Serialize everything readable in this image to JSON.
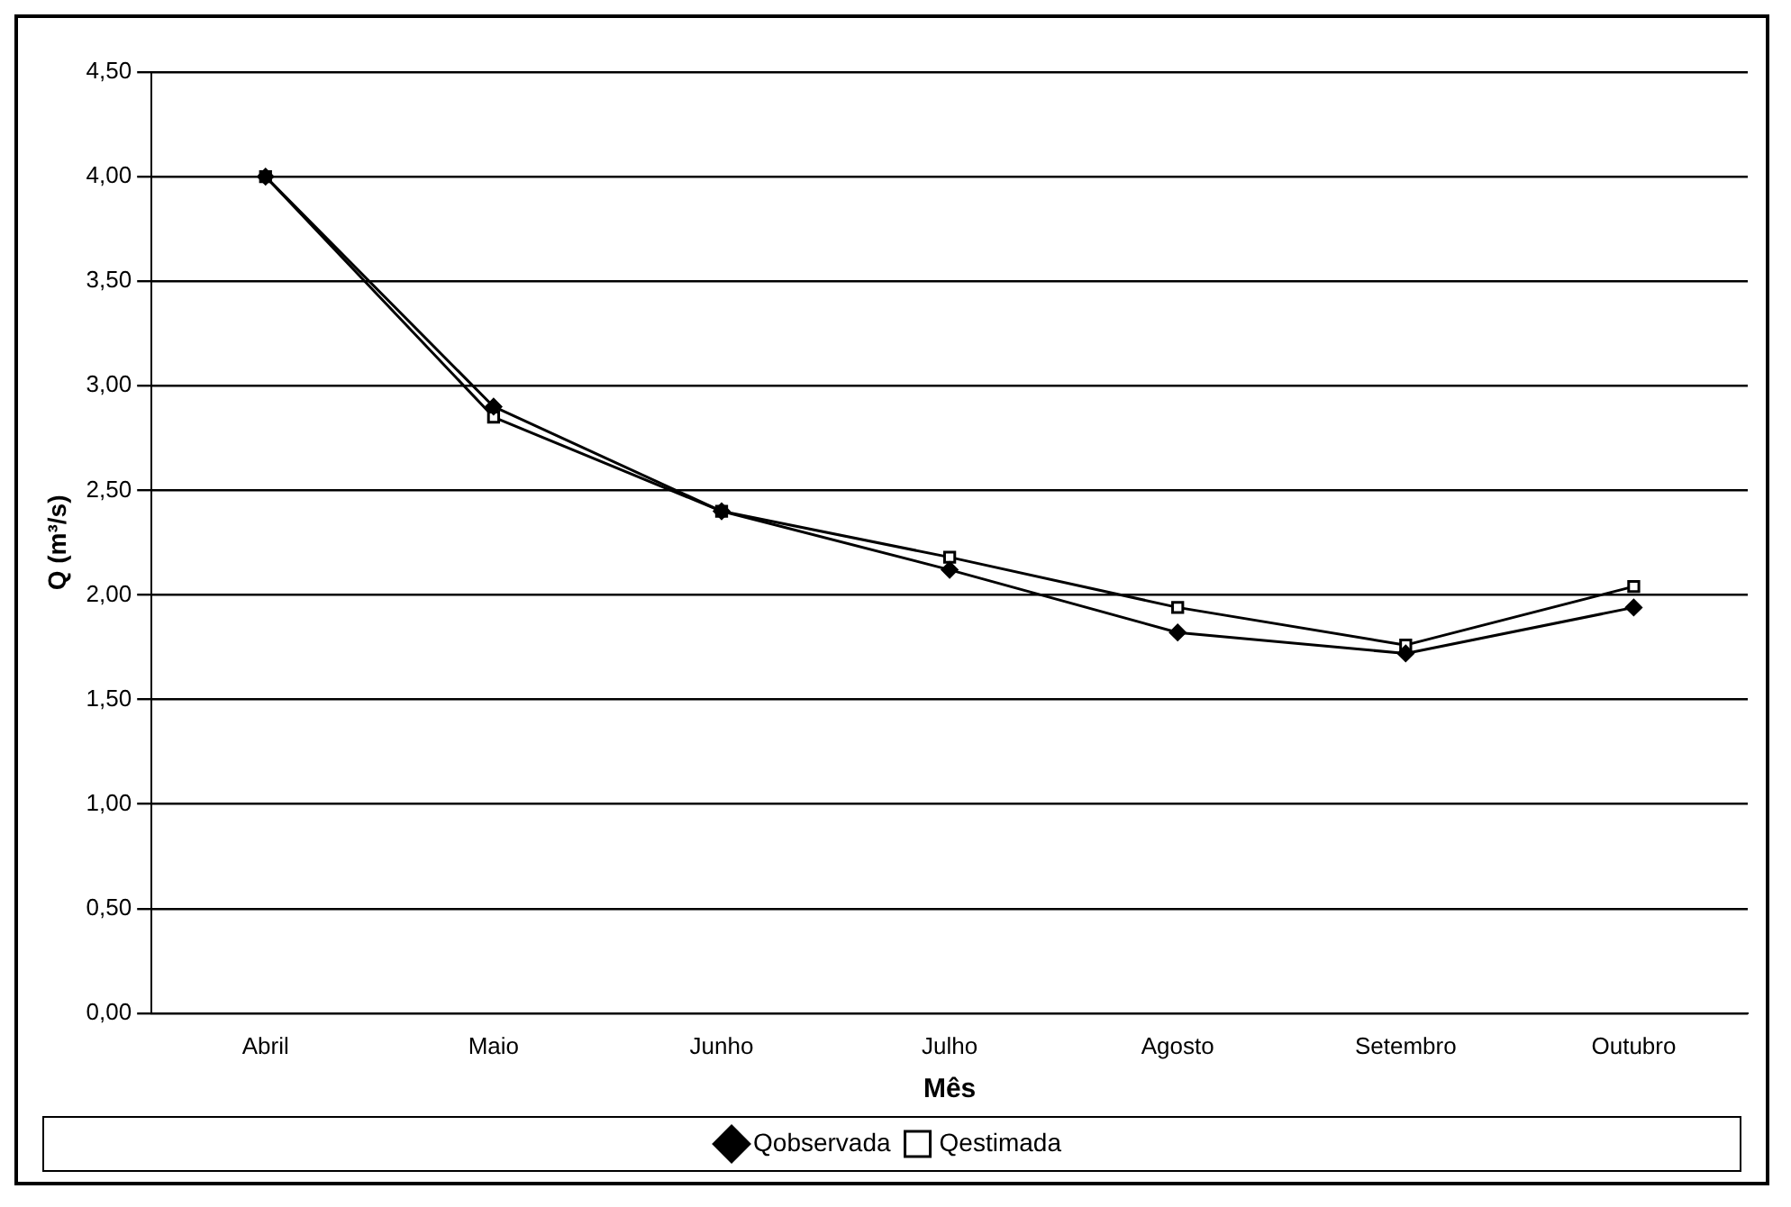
{
  "chart_data": {
    "type": "line",
    "xlabel": "Mês",
    "ylabel": "Q (m³/s)",
    "categories": [
      "Abril",
      "Maio",
      "Junho",
      "Julho",
      "Agosto",
      "Setembro",
      "Outubro"
    ],
    "series": [
      {
        "name": "Qobservada",
        "color": "#000000",
        "marker": "diamond",
        "values": [
          4.0,
          2.9,
          2.4,
          2.12,
          1.82,
          1.72,
          1.94
        ]
      },
      {
        "name": "Qestimada",
        "color": "#000000",
        "marker": "square",
        "values": [
          4.0,
          2.85,
          2.4,
          2.18,
          1.94,
          1.76,
          2.04
        ]
      }
    ],
    "ylim": [
      0,
      4.5
    ],
    "yticks": [
      {
        "value": 0,
        "label": "0,00"
      },
      {
        "value": 0.5,
        "label": "0,50"
      },
      {
        "value": 1,
        "label": "1,00"
      },
      {
        "value": 1.5,
        "label": "1,50"
      },
      {
        "value": 2,
        "label": "2,00"
      },
      {
        "value": 2.5,
        "label": "2,50"
      },
      {
        "value": 3,
        "label": "3,00"
      },
      {
        "value": 3.5,
        "label": "3,50"
      },
      {
        "value": 4,
        "label": "4,00"
      },
      {
        "value": 4.5,
        "label": "4,50"
      }
    ],
    "grid": "y",
    "legend": "bottom",
    "line_style": "solid"
  }
}
